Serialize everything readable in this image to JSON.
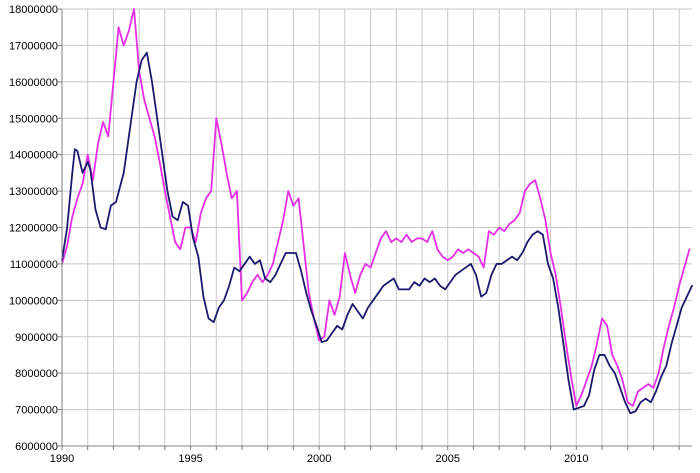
{
  "chart_data": {
    "type": "line",
    "title": "",
    "xlabel": "",
    "ylabel": "",
    "xlim": [
      1990,
      2014.5
    ],
    "ylim": [
      6000000,
      18000000
    ],
    "grid": true,
    "legend": "none",
    "x_tick_labels": [
      "1990",
      "1995",
      "2000",
      "2005",
      "2010"
    ],
    "x_tick_values": [
      1990,
      1995,
      2000,
      2005,
      2010
    ],
    "y_tick_labels": [
      "6000000",
      "7000000",
      "8000000",
      "9000000",
      "10000000",
      "11000000",
      "12000000",
      "13000000",
      "14000000",
      "15000000",
      "16000000",
      "17000000",
      "18000000"
    ],
    "y_tick_values": [
      6000000,
      7000000,
      8000000,
      9000000,
      10000000,
      11000000,
      12000000,
      13000000,
      14000000,
      15000000,
      16000000,
      17000000,
      18000000
    ],
    "series": [
      {
        "color": "#1a1a6e",
        "x": [
          1990.0,
          1990.2,
          1990.4,
          1990.5,
          1990.6,
          1990.8,
          1991.0,
          1991.1,
          1991.3,
          1991.5,
          1991.7,
          1991.9,
          1992.1,
          1992.4,
          1992.7,
          1992.9,
          1993.1,
          1993.3,
          1993.5,
          1993.7,
          1993.9,
          1994.1,
          1994.3,
          1994.5,
          1994.7,
          1994.9,
          1995.1,
          1995.3,
          1995.5,
          1995.7,
          1995.9,
          1996.1,
          1996.3,
          1996.5,
          1996.7,
          1996.9,
          1997.1,
          1997.3,
          1997.5,
          1997.7,
          1997.9,
          1998.1,
          1998.3,
          1998.5,
          1998.7,
          1998.9,
          1999.1,
          1999.3,
          1999.5,
          1999.7,
          1999.9,
          2000.1,
          2000.3,
          2000.5,
          2000.7,
          2000.9,
          2001.1,
          2001.3,
          2001.5,
          2001.7,
          2001.9,
          2002.1,
          2002.3,
          2002.5,
          2002.7,
          2002.9,
          2003.1,
          2003.3,
          2003.5,
          2003.7,
          2003.9,
          2004.1,
          2004.3,
          2004.5,
          2004.7,
          2004.9,
          2005.1,
          2005.3,
          2005.5,
          2005.7,
          2005.9,
          2006.1,
          2006.3,
          2006.5,
          2006.7,
          2006.9,
          2007.1,
          2007.3,
          2007.5,
          2007.7,
          2007.9,
          2008.1,
          2008.3,
          2008.5,
          2008.7,
          2008.9,
          2009.1,
          2009.3,
          2009.5,
          2009.7,
          2009.9,
          2010.1,
          2010.3,
          2010.5,
          2010.7,
          2010.9,
          2011.1,
          2011.3,
          2011.5,
          2011.7,
          2011.9,
          2012.1,
          2012.3,
          2012.5,
          2012.7,
          2012.9,
          2013.1,
          2013.3,
          2013.5,
          2013.7,
          2013.9,
          2014.1,
          2014.3,
          2014.5
        ],
        "values": [
          11100000,
          12000000,
          13500000,
          14150000,
          14100000,
          13500000,
          13800000,
          13600000,
          12500000,
          12000000,
          11950000,
          12600000,
          12700000,
          13500000,
          15000000,
          16000000,
          16600000,
          16800000,
          16000000,
          15000000,
          14000000,
          13000000,
          12300000,
          12200000,
          12700000,
          12600000,
          11700000,
          11200000,
          10100000,
          9500000,
          9400000,
          9800000,
          10000000,
          10400000,
          10900000,
          10800000,
          11000000,
          11200000,
          11000000,
          11100000,
          10600000,
          10500000,
          10700000,
          11000000,
          11300000,
          11300000,
          11300000,
          10800000,
          10200000,
          9700000,
          9300000,
          8850000,
          8900000,
          9100000,
          9300000,
          9200000,
          9600000,
          9900000,
          9700000,
          9500000,
          9800000,
          10000000,
          10200000,
          10400000,
          10500000,
          10600000,
          10300000,
          10300000,
          10300000,
          10500000,
          10400000,
          10600000,
          10500000,
          10600000,
          10400000,
          10300000,
          10500000,
          10700000,
          10800000,
          10900000,
          11000000,
          10700000,
          10100000,
          10200000,
          10700000,
          11000000,
          11000000,
          11100000,
          11200000,
          11100000,
          11300000,
          11600000,
          11800000,
          11900000,
          11800000,
          11000000,
          10600000,
          9800000,
          8800000,
          7800000,
          7000000,
          7050000,
          7100000,
          7400000,
          8100000,
          8500000,
          8500000,
          8200000,
          8000000,
          7600000,
          7200000,
          6900000,
          6950000,
          7200000,
          7300000,
          7200000,
          7500000,
          7900000,
          8200000,
          8800000,
          9300000,
          9800000,
          10100000,
          10400000
        ]
      },
      {
        "color": "#e62ee6",
        "x": [
          1990.0,
          1990.2,
          1990.4,
          1990.6,
          1990.8,
          1991.0,
          1991.2,
          1991.4,
          1991.6,
          1991.8,
          1992.0,
          1992.2,
          1992.4,
          1992.6,
          1992.8,
          1993.0,
          1993.2,
          1993.4,
          1993.6,
          1993.8,
          1994.0,
          1994.2,
          1994.4,
          1994.6,
          1994.8,
          1995.0,
          1995.2,
          1995.4,
          1995.6,
          1995.8,
          1996.0,
          1996.2,
          1996.4,
          1996.6,
          1996.8,
          1997.0,
          1997.2,
          1997.4,
          1997.6,
          1997.8,
          1998.0,
          1998.2,
          1998.4,
          1998.6,
          1998.8,
          1999.0,
          1999.2,
          1999.4,
          1999.6,
          1999.8,
          2000.0,
          2000.2,
          2000.4,
          2000.6,
          2000.8,
          2001.0,
          2001.2,
          2001.4,
          2001.6,
          2001.8,
          2002.0,
          2002.2,
          2002.4,
          2002.6,
          2002.8,
          2003.0,
          2003.2,
          2003.4,
          2003.6,
          2003.8,
          2004.0,
          2004.2,
          2004.4,
          2004.6,
          2004.8,
          2005.0,
          2005.2,
          2005.4,
          2005.6,
          2005.8,
          2006.0,
          2006.2,
          2006.4,
          2006.6,
          2006.8,
          2007.0,
          2007.2,
          2007.4,
          2007.6,
          2007.8,
          2008.0,
          2008.2,
          2008.4,
          2008.6,
          2008.8,
          2009.0,
          2009.2,
          2009.4,
          2009.6,
          2009.8,
          2010.0,
          2010.2,
          2010.4,
          2010.6,
          2010.8,
          2011.0,
          2011.2,
          2011.4,
          2011.6,
          2011.8,
          2012.0,
          2012.2,
          2012.4,
          2012.6,
          2012.8,
          2013.0,
          2013.2,
          2013.4,
          2013.6,
          2013.8,
          2014.0,
          2014.2,
          2014.4
        ],
        "values": [
          11000000,
          11500000,
          12300000,
          12800000,
          13200000,
          14000000,
          13300000,
          14300000,
          14900000,
          14500000,
          16000000,
          17500000,
          17000000,
          17400000,
          18000000,
          16300000,
          15500000,
          15000000,
          14500000,
          13800000,
          13000000,
          12300000,
          11600000,
          11400000,
          12000000,
          12000000,
          11600000,
          12400000,
          12800000,
          13000000,
          15000000,
          14300000,
          13500000,
          12800000,
          13000000,
          10000000,
          10200000,
          10500000,
          10700000,
          10500000,
          10700000,
          11000000,
          11600000,
          12200000,
          13000000,
          12600000,
          12800000,
          11500000,
          10200000,
          9500000,
          8900000,
          9000000,
          10000000,
          9600000,
          10100000,
          11300000,
          10700000,
          10200000,
          10700000,
          11000000,
          10900000,
          11300000,
          11700000,
          11900000,
          11600000,
          11700000,
          11600000,
          11800000,
          11600000,
          11700000,
          11700000,
          11600000,
          11900000,
          11400000,
          11200000,
          11100000,
          11200000,
          11400000,
          11300000,
          11400000,
          11300000,
          11200000,
          10900000,
          11900000,
          11800000,
          12000000,
          11900000,
          12100000,
          12200000,
          12400000,
          13000000,
          13200000,
          13300000,
          12800000,
          12200000,
          11300000,
          10700000,
          9800000,
          8800000,
          7900000,
          7100000,
          7400000,
          7800000,
          8200000,
          8800000,
          9500000,
          9300000,
          8500000,
          8200000,
          7800000,
          7200000,
          7100000,
          7500000,
          7600000,
          7700000,
          7600000,
          8000000,
          8700000,
          9300000,
          9800000,
          10400000,
          10900000,
          11400000
        ]
      }
    ]
  }
}
